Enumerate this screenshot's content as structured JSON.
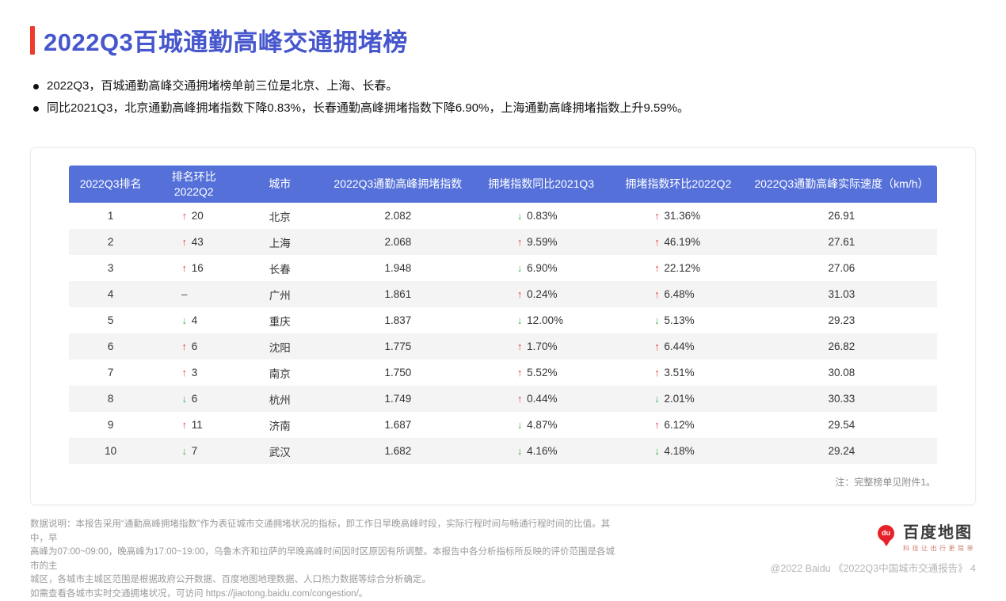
{
  "header": {
    "title": "2022Q3百城通勤高峰交通拥堵榜",
    "bullets": [
      "2022Q3，百城通勤高峰交通拥堵榜单前三位是北京、上海、长春。",
      "同比2021Q3，北京通勤高峰拥堵指数下降0.83%，长春通勤高峰拥堵指数下降6.90%，上海通勤高峰拥堵指数上升9.59%。"
    ]
  },
  "card": {
    "note": "注：完整榜单见附件1。"
  },
  "chart_data": {
    "type": "table",
    "columns": [
      "2022Q3排名",
      "排名环比\n2022Q2",
      "城市",
      "2022Q3通勤高峰拥堵指数",
      "拥堵指数同比2021Q3",
      "拥堵指数环比2022Q2",
      "2022Q3通勤高峰实际速度（km/h）"
    ],
    "rows": [
      {
        "rank": "1",
        "rank_change": {
          "dir": "up",
          "value": "20"
        },
        "city": "北京",
        "index": "2.082",
        "yoy": {
          "dir": "down",
          "value": "0.83%"
        },
        "qoq": {
          "dir": "up",
          "value": "31.36%"
        },
        "speed": "26.91"
      },
      {
        "rank": "2",
        "rank_change": {
          "dir": "up",
          "value": "43"
        },
        "city": "上海",
        "index": "2.068",
        "yoy": {
          "dir": "up",
          "value": "9.59%"
        },
        "qoq": {
          "dir": "up",
          "value": "46.19%"
        },
        "speed": "27.61"
      },
      {
        "rank": "3",
        "rank_change": {
          "dir": "up",
          "value": "16"
        },
        "city": "长春",
        "index": "1.948",
        "yoy": {
          "dir": "down",
          "value": "6.90%"
        },
        "qoq": {
          "dir": "up",
          "value": "22.12%"
        },
        "speed": "27.06"
      },
      {
        "rank": "4",
        "rank_change": {
          "dir": "flat",
          "value": "–"
        },
        "city": "广州",
        "index": "1.861",
        "yoy": {
          "dir": "up",
          "value": "0.24%"
        },
        "qoq": {
          "dir": "up",
          "value": "6.48%"
        },
        "speed": "31.03"
      },
      {
        "rank": "5",
        "rank_change": {
          "dir": "down",
          "value": "4"
        },
        "city": "重庆",
        "index": "1.837",
        "yoy": {
          "dir": "down",
          "value": "12.00%"
        },
        "qoq": {
          "dir": "down",
          "value": "5.13%"
        },
        "speed": "29.23"
      },
      {
        "rank": "6",
        "rank_change": {
          "dir": "up",
          "value": "6"
        },
        "city": "沈阳",
        "index": "1.775",
        "yoy": {
          "dir": "up",
          "value": "1.70%"
        },
        "qoq": {
          "dir": "up",
          "value": "6.44%"
        },
        "speed": "26.82"
      },
      {
        "rank": "7",
        "rank_change": {
          "dir": "up",
          "value": "3"
        },
        "city": "南京",
        "index": "1.750",
        "yoy": {
          "dir": "up",
          "value": "5.52%"
        },
        "qoq": {
          "dir": "up",
          "value": "3.51%"
        },
        "speed": "30.08"
      },
      {
        "rank": "8",
        "rank_change": {
          "dir": "down",
          "value": "6"
        },
        "city": "杭州",
        "index": "1.749",
        "yoy": {
          "dir": "up",
          "value": "0.44%"
        },
        "qoq": {
          "dir": "down",
          "value": "2.01%"
        },
        "speed": "30.33"
      },
      {
        "rank": "9",
        "rank_change": {
          "dir": "up",
          "value": "11"
        },
        "city": "济南",
        "index": "1.687",
        "yoy": {
          "dir": "down",
          "value": "4.87%"
        },
        "qoq": {
          "dir": "up",
          "value": "6.12%"
        },
        "speed": "29.54"
      },
      {
        "rank": "10",
        "rank_change": {
          "dir": "down",
          "value": "7"
        },
        "city": "武汉",
        "index": "1.682",
        "yoy": {
          "dir": "down",
          "value": "4.16%"
        },
        "qoq": {
          "dir": "down",
          "value": "4.18%"
        },
        "speed": "29.24"
      }
    ]
  },
  "footer": {
    "lines": [
      "数据说明：本报告采用“通勤高峰拥堵指数”作为表征城市交通拥堵状况的指标，即工作日早晚高峰时段，实际行程时间与畅通行程时间的比值。其中，早",
      "高峰为07:00~09:00，晚高峰为17:00~19:00，乌鲁木齐和拉萨的早晚高峰时间因时区原因有所调整。本报告中各分析指标所反映的评价范围是各城市的主",
      "城区，各城市主城区范围是根据政府公开数据、百度地图地理数据、人口热力数据等综合分析确定。",
      "如需查看各城市实时交通拥堵状况，可访问 https://jiaotong.baidu.com/congestion/。"
    ],
    "logo": {
      "brand": "百度地图",
      "slogan": "科技让出行更简单",
      "pin_label": "du"
    },
    "copyright": "@2022 Baidu 《2022Q3中国城市交通报告》 4"
  },
  "colors": {
    "title_blue": "#4656cd",
    "table_header_blue": "#5571d9",
    "accent_red": "#ee3b2e",
    "up_arrow_red": "#e23c39",
    "down_arrow_green": "#3fae4e",
    "row_alt_gray": "#f4f4f5"
  }
}
